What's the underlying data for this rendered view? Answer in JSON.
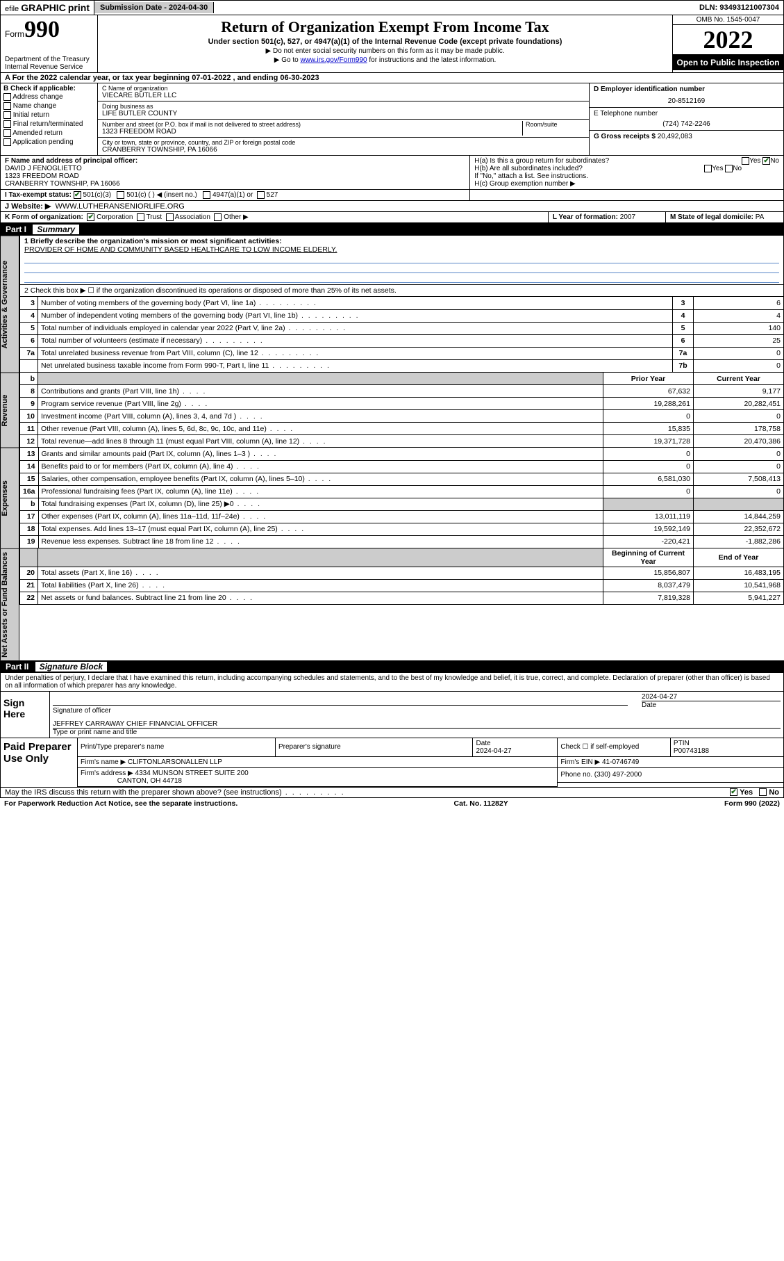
{
  "topbar": {
    "efile_label_1": "efile",
    "efile_label_2": "GRAPHIC",
    "efile_label_3": "print",
    "submission_label": "Submission Date - 2024-04-30",
    "dln": "DLN: 93493121007304"
  },
  "header": {
    "form_word": "Form",
    "form_number": "990",
    "dept": "Department of the Treasury",
    "irs": "Internal Revenue Service",
    "title": "Return of Organization Exempt From Income Tax",
    "subtitle": "Under section 501(c), 527, or 4947(a)(1) of the Internal Revenue Code (except private foundations)",
    "note1": "▶ Do not enter social security numbers on this form as it may be made public.",
    "note2_pre": "▶ Go to ",
    "note2_link": "www.irs.gov/Form990",
    "note2_post": " for instructions and the latest information.",
    "omb": "OMB No. 1545-0047",
    "year": "2022",
    "open": "Open to Public Inspection"
  },
  "rowA": "A  For the 2022 calendar year, or tax year beginning 07-01-2022   , and ending 06-30-2023",
  "colB": {
    "heading": "B Check if applicable:",
    "items": [
      "Address change",
      "Name change",
      "Initial return",
      "Final return/terminated",
      "Amended return",
      "Application pending"
    ]
  },
  "nameblock": {
    "c_label": "C Name of organization",
    "c_name": "VIECARE BUTLER LLC",
    "dba_label": "Doing business as",
    "dba": "LIFE BUTLER COUNTY",
    "street_label": "Number and street (or P.O. box if mail is not delivered to street address)",
    "room_label": "Room/suite",
    "street": "1323 FREEDOM ROAD",
    "city_label": "City or town, state or province, country, and ZIP or foreign postal code",
    "city": "CRANBERRY TOWNSHIP, PA  16066"
  },
  "colD": {
    "label": "D Employer identification number",
    "value": "20-8512169"
  },
  "colE": {
    "label": "E Telephone number",
    "value": "(724) 742-2246"
  },
  "colG": {
    "label": "G Gross receipts $",
    "value": "20,492,083"
  },
  "rowF": {
    "label": "F  Name and address of principal officer:",
    "name": "DAVID J FENOGLIETTO",
    "addr1": "1323 FREEDOM ROAD",
    "addr2": "CRANBERRY TOWNSHIP, PA  16066"
  },
  "rowH": {
    "ha": "H(a)  Is this a group return for subordinates?",
    "ha_yes": "Yes",
    "ha_no": "No",
    "hb": "H(b)  Are all subordinates included?",
    "hb_yes": "Yes",
    "hb_no": "No",
    "hb_note": "If \"No,\" attach a list. See instructions.",
    "hc": "H(c)  Group exemption number ▶"
  },
  "rowI": {
    "label": "I   Tax-exempt status:",
    "opt1": "501(c)(3)",
    "opt2": "501(c) (  ) ◀ (insert no.)",
    "opt3": "4947(a)(1) or",
    "opt4": "527"
  },
  "rowJ": {
    "label": "J   Website: ▶",
    "value": "WWW.LUTHERANSENIORLIFE.ORG"
  },
  "rowK": {
    "label": "K Form of organization:",
    "opts": [
      "Corporation",
      "Trust",
      "Association",
      "Other ▶"
    ]
  },
  "rowL": {
    "label": "L Year of formation:",
    "value": "2007"
  },
  "rowM": {
    "label": "M State of legal domicile:",
    "value": "PA"
  },
  "part1": {
    "bar": "Part I",
    "title": "Summary"
  },
  "mission": {
    "q": "1  Briefly describe the organization's mission or most significant activities:",
    "text": "PROVIDER OF HOME AND COMMUNITY BASED HEALTHCARE TO LOW INCOME ELDERLY."
  },
  "line2": "2   Check this box ▶ ☐  if the organization discontinued its operations or disposed of more than 25% of its net assets.",
  "govlines": [
    {
      "n": "3",
      "d": "Number of voting members of the governing body (Part VI, line 1a)",
      "b": "3",
      "v": "6"
    },
    {
      "n": "4",
      "d": "Number of independent voting members of the governing body (Part VI, line 1b)",
      "b": "4",
      "v": "4"
    },
    {
      "n": "5",
      "d": "Total number of individuals employed in calendar year 2022 (Part V, line 2a)",
      "b": "5",
      "v": "140"
    },
    {
      "n": "6",
      "d": "Total number of volunteers (estimate if necessary)",
      "b": "6",
      "v": "25"
    },
    {
      "n": "7a",
      "d": "Total unrelated business revenue from Part VIII, column (C), line 12",
      "b": "7a",
      "v": "0"
    },
    {
      "n": "",
      "d": "Net unrelated business taxable income from Form 990-T, Part I, line 11",
      "b": "7b",
      "v": "0"
    }
  ],
  "yearhdr": {
    "b": "b",
    "prior": "Prior Year",
    "current": "Current Year"
  },
  "revenue": [
    {
      "n": "8",
      "d": "Contributions and grants (Part VIII, line 1h)",
      "p": "67,632",
      "c": "9,177"
    },
    {
      "n": "9",
      "d": "Program service revenue (Part VIII, line 2g)",
      "p": "19,288,261",
      "c": "20,282,451"
    },
    {
      "n": "10",
      "d": "Investment income (Part VIII, column (A), lines 3, 4, and 7d )",
      "p": "0",
      "c": "0"
    },
    {
      "n": "11",
      "d": "Other revenue (Part VIII, column (A), lines 5, 6d, 8c, 9c, 10c, and 11e)",
      "p": "15,835",
      "c": "178,758"
    },
    {
      "n": "12",
      "d": "Total revenue—add lines 8 through 11 (must equal Part VIII, column (A), line 12)",
      "p": "19,371,728",
      "c": "20,470,386"
    }
  ],
  "expenses": [
    {
      "n": "13",
      "d": "Grants and similar amounts paid (Part IX, column (A), lines 1–3 )",
      "p": "0",
      "c": "0"
    },
    {
      "n": "14",
      "d": "Benefits paid to or for members (Part IX, column (A), line 4)",
      "p": "0",
      "c": "0"
    },
    {
      "n": "15",
      "d": "Salaries, other compensation, employee benefits (Part IX, column (A), lines 5–10)",
      "p": "6,581,030",
      "c": "7,508,413"
    },
    {
      "n": "16a",
      "d": "Professional fundraising fees (Part IX, column (A), line 11e)",
      "p": "0",
      "c": "0"
    },
    {
      "n": "b",
      "d": "Total fundraising expenses (Part IX, column (D), line 25) ▶0",
      "p": "",
      "c": "",
      "shade": true
    },
    {
      "n": "17",
      "d": "Other expenses (Part IX, column (A), lines 11a–11d, 11f–24e)",
      "p": "13,011,119",
      "c": "14,844,259"
    },
    {
      "n": "18",
      "d": "Total expenses. Add lines 13–17 (must equal Part IX, column (A), line 25)",
      "p": "19,592,149",
      "c": "22,352,672"
    },
    {
      "n": "19",
      "d": "Revenue less expenses. Subtract line 18 from line 12",
      "p": "-220,421",
      "c": "-1,882,286"
    }
  ],
  "nethdr": {
    "beg": "Beginning of Current Year",
    "end": "End of Year"
  },
  "netassets": [
    {
      "n": "20",
      "d": "Total assets (Part X, line 16)",
      "p": "15,856,807",
      "c": "16,483,195"
    },
    {
      "n": "21",
      "d": "Total liabilities (Part X, line 26)",
      "p": "8,037,479",
      "c": "10,541,968"
    },
    {
      "n": "22",
      "d": "Net assets or fund balances. Subtract line 21 from line 20",
      "p": "7,819,328",
      "c": "5,941,227"
    }
  ],
  "part2": {
    "bar": "Part II",
    "title": "Signature Block"
  },
  "penalty": "Under penalties of perjury, I declare that I have examined this return, including accompanying schedules and statements, and to the best of my knowledge and belief, it is true, correct, and complete. Declaration of preparer (other than officer) is based on all information of which preparer has any knowledge.",
  "sign": {
    "label": "Sign Here",
    "sig_of_officer": "Signature of officer",
    "date_label": "Date",
    "date": "2024-04-27",
    "officer": "JEFFREY CARRAWAY  CHIEF FINANCIAL OFFICER",
    "name_label": "Type or print name and title"
  },
  "prep": {
    "label": "Paid Preparer Use Only",
    "h1": "Print/Type preparer's name",
    "h2": "Preparer's signature",
    "h3": "Date",
    "date": "2024-04-27",
    "h4": "Check ☐ if self-employed",
    "h5": "PTIN",
    "ptin": "P00743188",
    "firm_label": "Firm's name    ▶",
    "firm": "CLIFTONLARSONALLEN LLP",
    "ein_label": "Firm's EIN ▶",
    "ein": "41-0746749",
    "addr_label": "Firm's address ▶",
    "addr1": "4334 MUNSON STREET SUITE 200",
    "addr2": "CANTON, OH  44718",
    "phone_label": "Phone no.",
    "phone": "(330) 497-2000"
  },
  "may_discuss": "May the IRS discuss this return with the preparer shown above? (see instructions)",
  "may_yes": "Yes",
  "may_no": "No",
  "footer": {
    "left": "For Paperwork Reduction Act Notice, see the separate instructions.",
    "mid": "Cat. No. 11282Y",
    "right_pre": "Form ",
    "right_form": "990",
    "right_post": " (2022)"
  },
  "vlabels": {
    "gov": "Activities & Governance",
    "rev": "Revenue",
    "exp": "Expenses",
    "net": "Net Assets or Fund Balances"
  }
}
